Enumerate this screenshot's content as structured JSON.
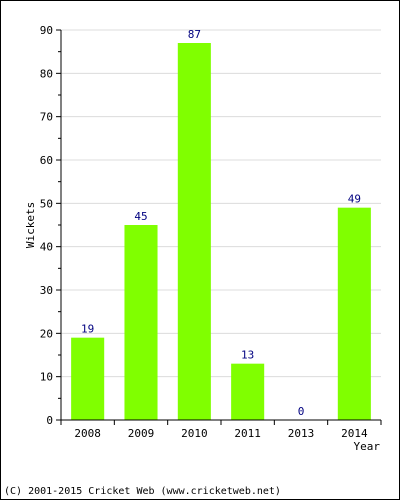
{
  "chart_data": {
    "type": "bar",
    "categories": [
      "2008",
      "2009",
      "2010",
      "2011",
      "2013",
      "2014"
    ],
    "values": [
      19,
      45,
      87,
      13,
      0,
      49
    ],
    "data_labels": [
      "19",
      "45",
      "87",
      "13",
      "0",
      "49"
    ],
    "xlabel": "Year",
    "ylabel": "Wickets",
    "ylim": [
      0,
      90
    ],
    "yticks": [
      0,
      10,
      20,
      30,
      40,
      50,
      60,
      70,
      80,
      90
    ],
    "ytick_labels": [
      "0",
      "10",
      "20",
      "30",
      "40",
      "50",
      "60",
      "70",
      "80",
      "90"
    ],
    "grid": true,
    "bar_color": "#80ff00",
    "label_color": "#000080"
  },
  "footer": {
    "copyright": "(C) 2001-2015 Cricket Web (www.cricketweb.net)"
  },
  "colors": {
    "background": "#ffffff",
    "plot_background": "#ffffff",
    "gridline": "#dcdcdc",
    "axis": "#000000",
    "frame": "#000000"
  }
}
